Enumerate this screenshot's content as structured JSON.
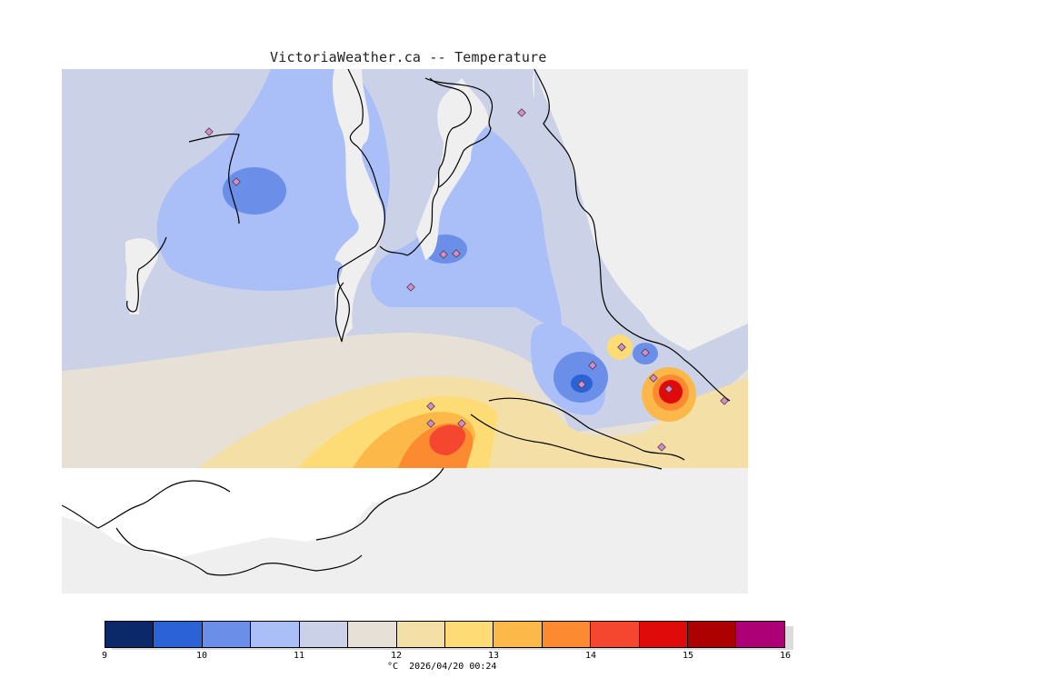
{
  "title": "VictoriaWeather.ca -- Temperature",
  "colors": {
    "land_outside_grid": "#efefef",
    "water_outside_grid": "#ffffff",
    "coastline": "#000000",
    "station_marker_fill": "#d98acb"
  },
  "legend": {
    "unit": "°C",
    "timestamp": "2026/04/20 00:24",
    "ticks": [
      "9",
      "10",
      "11",
      "12",
      "13",
      "14",
      "15",
      "16"
    ],
    "bins": [
      {
        "from": 9.0,
        "to": 9.5,
        "color": "#0b2868"
      },
      {
        "from": 9.5,
        "to": 10.0,
        "color": "#2b62d6"
      },
      {
        "from": 10.0,
        "to": 10.5,
        "color": "#6b8ee8"
      },
      {
        "from": 10.5,
        "to": 11.0,
        "color": "#aabef8"
      },
      {
        "from": 11.0,
        "to": 11.5,
        "color": "#cbd1e6"
      },
      {
        "from": 11.5,
        "to": 12.0,
        "color": "#e7e0d6"
      },
      {
        "from": 12.0,
        "to": 12.5,
        "color": "#f4e0a6"
      },
      {
        "from": 12.5,
        "to": 13.0,
        "color": "#fddc75"
      },
      {
        "from": 13.0,
        "to": 13.5,
        "color": "#fcb94a"
      },
      {
        "from": 13.5,
        "to": 14.0,
        "color": "#fb8a30"
      },
      {
        "from": 14.0,
        "to": 14.5,
        "color": "#f54630"
      },
      {
        "from": 14.5,
        "to": 15.0,
        "color": "#df0a0a"
      },
      {
        "from": 15.0,
        "to": 15.5,
        "color": "#ad0000"
      },
      {
        "from": 15.5,
        "to": 16.0,
        "color": "#ad0077"
      }
    ]
  },
  "stations_count": 17
}
